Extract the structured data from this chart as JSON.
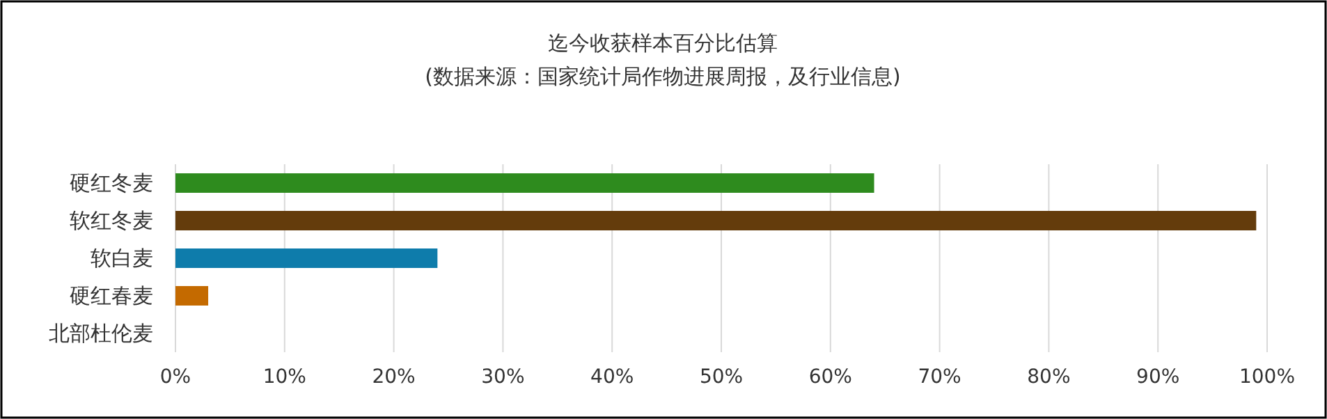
{
  "chart_data": {
    "type": "bar",
    "orientation": "horizontal",
    "title": "迄今收获样本百分比估算",
    "subtitle": "(数据来源：国家统计局作物进展周报，及行业信息)",
    "categories": [
      "硬红冬麦",
      "软红冬麦",
      "软白麦",
      "硬红春麦",
      "北部杜伦麦"
    ],
    "values": [
      64,
      99,
      24,
      3,
      0
    ],
    "colors": [
      "#2e8b1e",
      "#643c0c",
      "#0e7cab",
      "#c46a00",
      "#808080"
    ],
    "xlim": [
      0,
      100
    ],
    "xticks": [
      {
        "value": 0,
        "label": "0%"
      },
      {
        "value": 10,
        "label": "10%"
      },
      {
        "value": 20,
        "label": "20%"
      },
      {
        "value": 30,
        "label": "30%"
      },
      {
        "value": 40,
        "label": "40%"
      },
      {
        "value": 50,
        "label": "50%"
      },
      {
        "value": 60,
        "label": "60%"
      },
      {
        "value": 70,
        "label": "70%"
      },
      {
        "value": 80,
        "label": "80%"
      },
      {
        "value": 90,
        "label": "90%"
      },
      {
        "value": 100,
        "label": "100%"
      }
    ],
    "grid": "x"
  }
}
